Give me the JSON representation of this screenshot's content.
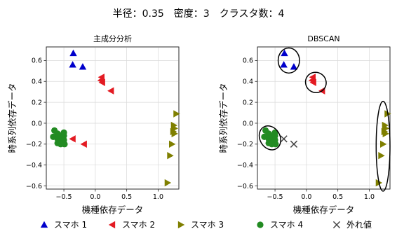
{
  "figure_title": "半径：0.35　密度：3　クラスタ数：4",
  "legend": [
    {
      "label": "スマホ 1",
      "marker": "triangle-up-icon",
      "color": "#0000cc"
    },
    {
      "label": "スマホ 2",
      "marker": "triangle-left-icon",
      "color": "#e31b23"
    },
    {
      "label": "スマホ 3",
      "marker": "triangle-right-icon",
      "color": "#7f7f00"
    },
    {
      "label": "スマホ 4",
      "marker": "circle-icon",
      "color": "#228b22"
    },
    {
      "label": "外れ値",
      "marker": "x-icon",
      "color": "#444444"
    }
  ],
  "chart_data": [
    {
      "type": "scatter",
      "title": "主成分分析",
      "xlabel": "機種依存データ",
      "ylabel": "時系列依存データ",
      "xlim": [
        -0.78,
        1.33
      ],
      "ylim": [
        -0.63,
        0.73
      ],
      "xticks": [
        -0.5,
        0.0,
        0.5,
        1.0
      ],
      "xtick_labels": [
        "−0.5",
        "0.0",
        "0.5",
        "1.0"
      ],
      "yticks": [
        -0.6,
        -0.4,
        -0.2,
        0.0,
        0.2,
        0.4,
        0.6
      ],
      "ytick_labels": [
        "−0.6",
        "−0.4",
        "−0.2",
        "0.0",
        "0.2",
        "0.4",
        "0.6"
      ],
      "grid": true,
      "series": [
        {
          "name": "スマホ 1",
          "marker": "triangle-up",
          "color": "#0000cc",
          "points": [
            [
              -0.35,
              0.67
            ],
            [
              -0.36,
              0.56
            ],
            [
              -0.2,
              0.54
            ]
          ]
        },
        {
          "name": "スマホ 2",
          "marker": "triangle-left",
          "color": "#e31b23",
          "points": [
            [
              0.1,
              0.44
            ],
            [
              0.09,
              0.41
            ],
            [
              0.11,
              0.39
            ],
            [
              0.25,
              0.31
            ],
            [
              -0.36,
              -0.15
            ],
            [
              -0.18,
              -0.2
            ]
          ]
        },
        {
          "name": "スマホ 3",
          "marker": "triangle-right",
          "color": "#7f7f00",
          "points": [
            [
              1.29,
              0.09
            ],
            [
              1.25,
              -0.02
            ],
            [
              1.26,
              -0.05
            ],
            [
              1.24,
              -0.08
            ],
            [
              1.26,
              -0.1
            ],
            [
              1.22,
              -0.2
            ],
            [
              1.19,
              -0.31
            ],
            [
              1.15,
              -0.57
            ]
          ]
        },
        {
          "name": "スマホ 4",
          "marker": "circle",
          "color": "#228b22",
          "points": [
            [
              -0.65,
              -0.07
            ],
            [
              -0.6,
              -0.1
            ],
            [
              -0.67,
              -0.13
            ],
            [
              -0.6,
              -0.15
            ],
            [
              -0.55,
              -0.12
            ],
            [
              -0.5,
              -0.12
            ],
            [
              -0.55,
              -0.17
            ],
            [
              -0.5,
              -0.16
            ],
            [
              -0.49,
              -0.2
            ],
            [
              -0.55,
              -0.2
            ],
            [
              -0.6,
              -0.19
            ],
            [
              -0.5,
              -0.09
            ]
          ]
        }
      ],
      "outliers": [],
      "ellipses": []
    },
    {
      "type": "scatter",
      "title": "DBSCAN",
      "xlabel": "機種依存データ",
      "ylabel": "時系列依存データ",
      "xlim": [
        -0.78,
        1.33
      ],
      "ylim": [
        -0.63,
        0.73
      ],
      "xticks": [
        -0.5,
        0.0,
        0.5,
        1.0
      ],
      "xtick_labels": [
        "−0.5",
        "0.0",
        "0.5",
        "1.0"
      ],
      "yticks": [
        -0.6,
        -0.4,
        -0.2,
        0.0,
        0.2,
        0.4,
        0.6
      ],
      "ytick_labels": [
        "−0.6",
        "−0.4",
        "−0.2",
        "0.0",
        "0.2",
        "0.4",
        "0.6"
      ],
      "grid": true,
      "series": [
        {
          "name": "スマホ 1",
          "marker": "triangle-up",
          "color": "#0000cc",
          "points": [
            [
              -0.35,
              0.67
            ],
            [
              -0.36,
              0.56
            ],
            [
              -0.2,
              0.54
            ]
          ]
        },
        {
          "name": "スマホ 2",
          "marker": "triangle-left",
          "color": "#e31b23",
          "points": [
            [
              0.1,
              0.44
            ],
            [
              0.09,
              0.41
            ],
            [
              0.11,
              0.39
            ],
            [
              0.25,
              0.31
            ]
          ]
        },
        {
          "name": "スマホ 3",
          "marker": "triangle-right",
          "color": "#7f7f00",
          "points": [
            [
              1.29,
              0.09
            ],
            [
              1.25,
              -0.02
            ],
            [
              1.26,
              -0.05
            ],
            [
              1.24,
              -0.08
            ],
            [
              1.26,
              -0.1
            ],
            [
              1.22,
              -0.2
            ],
            [
              1.19,
              -0.31
            ],
            [
              1.15,
              -0.57
            ]
          ]
        },
        {
          "name": "スマホ 4",
          "marker": "circle",
          "color": "#228b22",
          "points": [
            [
              -0.65,
              -0.07
            ],
            [
              -0.6,
              -0.1
            ],
            [
              -0.67,
              -0.13
            ],
            [
              -0.6,
              -0.15
            ],
            [
              -0.55,
              -0.12
            ],
            [
              -0.5,
              -0.12
            ],
            [
              -0.55,
              -0.17
            ],
            [
              -0.5,
              -0.16
            ],
            [
              -0.49,
              -0.2
            ],
            [
              -0.55,
              -0.2
            ],
            [
              -0.6,
              -0.19
            ],
            [
              -0.5,
              -0.09
            ]
          ]
        }
      ],
      "outliers": [
        [
          -0.36,
          -0.15
        ],
        [
          -0.2,
          -0.2
        ]
      ],
      "ellipses": [
        {
          "cx": -0.28,
          "cy": 0.6,
          "rx": 0.17,
          "ry": 0.12,
          "angle": 0
        },
        {
          "cx": 0.15,
          "cy": 0.39,
          "rx": 0.16,
          "ry": 0.1,
          "angle": -55
        },
        {
          "cx": -0.58,
          "cy": -0.14,
          "rx": 0.16,
          "ry": 0.12,
          "angle": -30
        },
        {
          "cx": 1.22,
          "cy": -0.22,
          "rx": 0.11,
          "ry": 0.43,
          "angle": 0
        }
      ]
    }
  ]
}
